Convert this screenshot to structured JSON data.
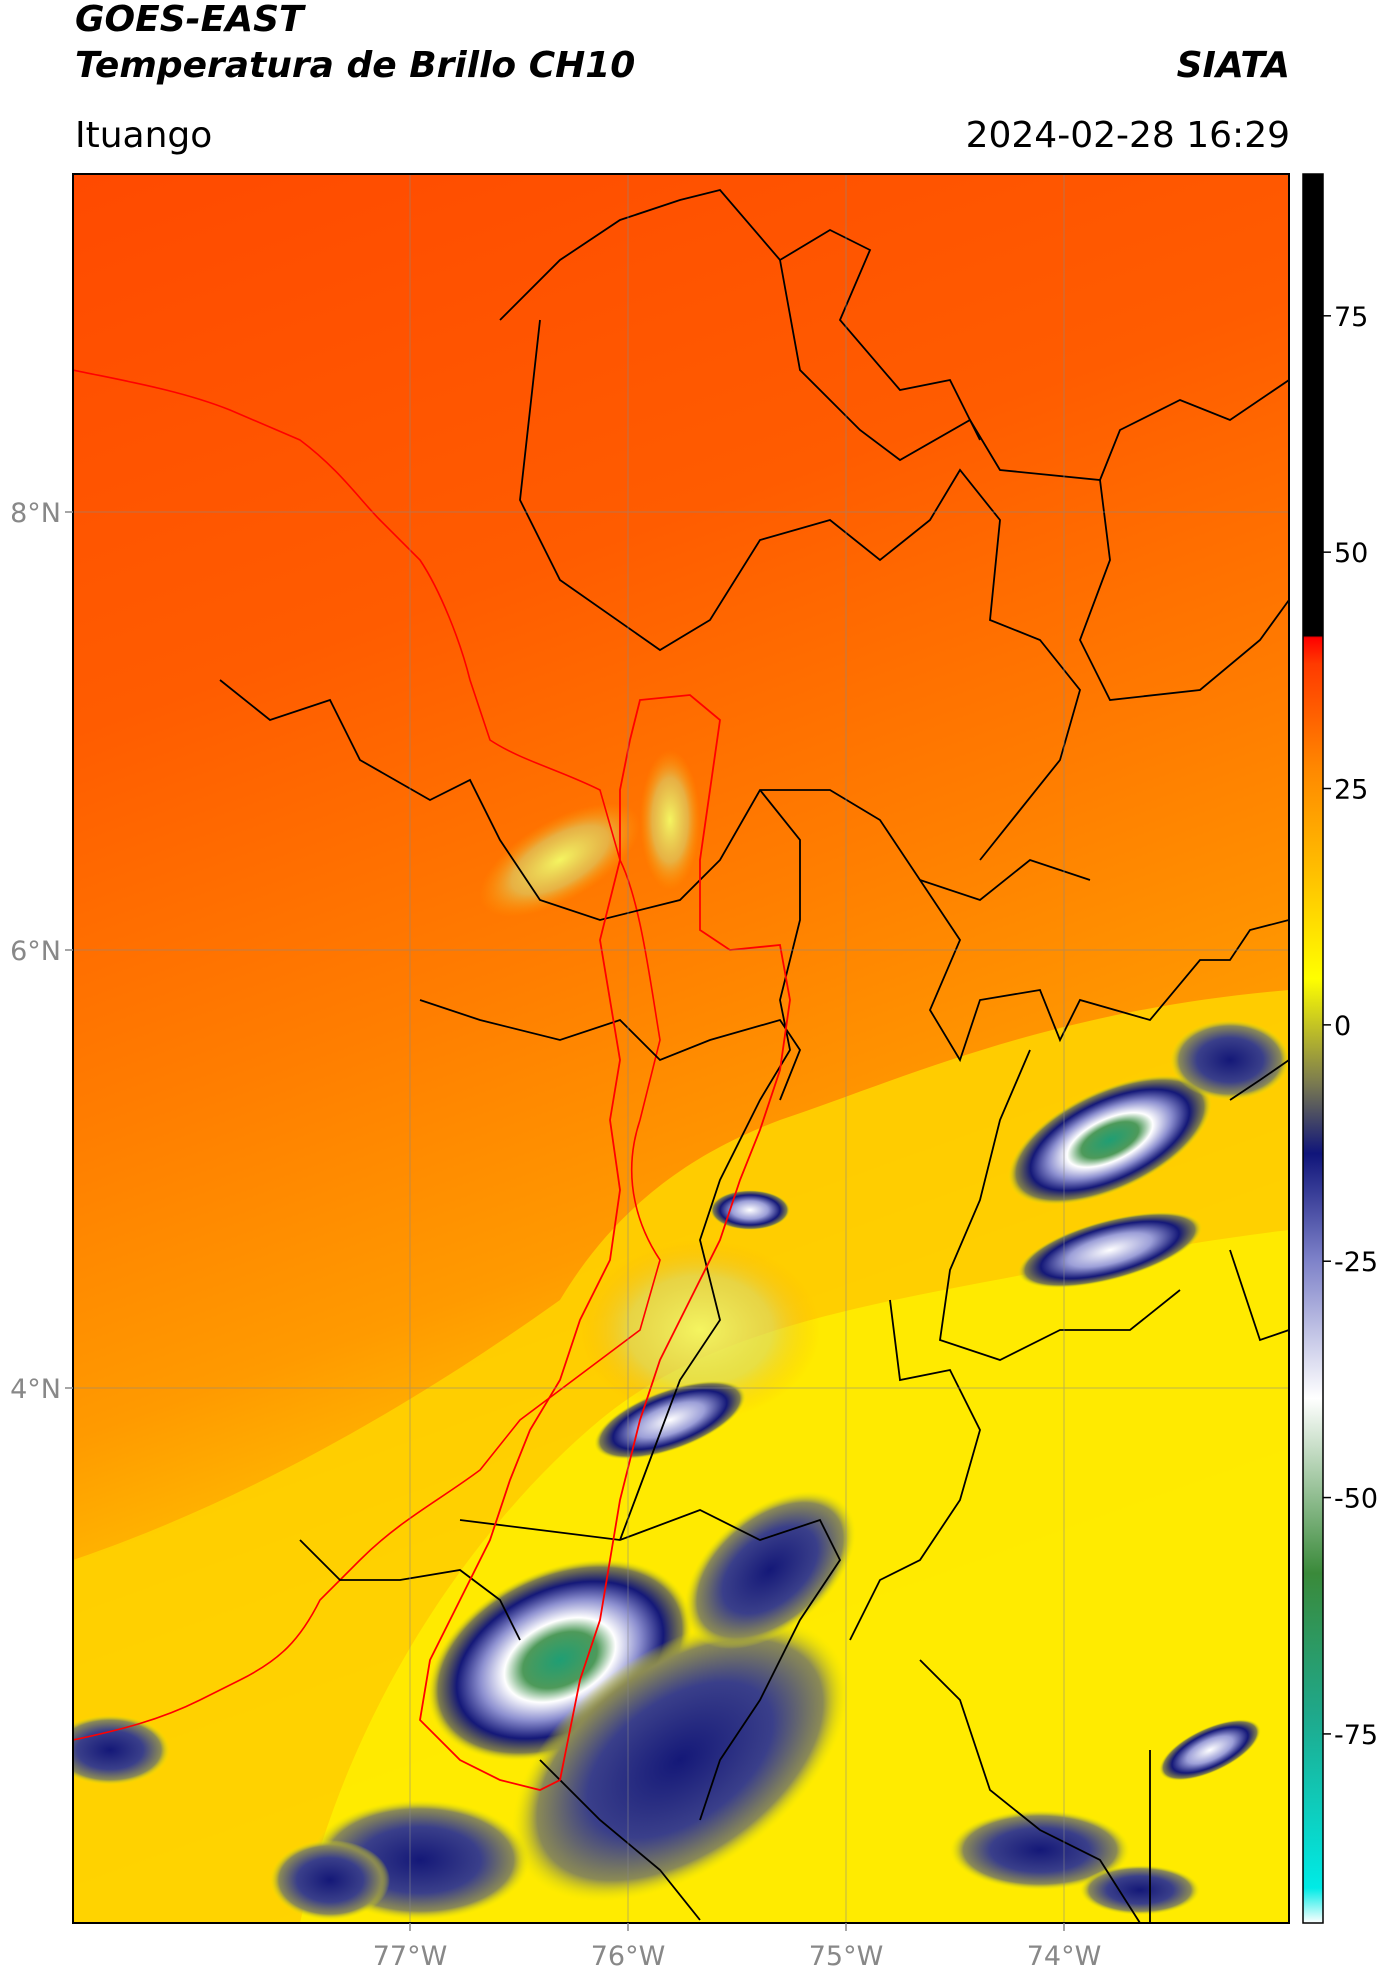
{
  "header": {
    "title_line1": "GOES-EAST",
    "title_line2": "Temperatura de Brillo CH10",
    "organization": "SIATA",
    "region": "Ituango",
    "timestamp": "2024-02-28 16:29"
  },
  "axes": {
    "lat_ticks": [
      "8°N",
      "6°N",
      "4°N"
    ],
    "lon_ticks": [
      "77°W",
      "76°W",
      "75°W",
      "74°W"
    ]
  },
  "colorbar": {
    "ticks": [
      "75",
      "50",
      "25",
      "0",
      "-25",
      "-50",
      "-75"
    ],
    "colors": {
      "black": "#000000",
      "red": "#ff1a00",
      "orange": "#ff8c00",
      "yellow": "#ffff00",
      "olive": "#8c8c40",
      "navy": "#12147a",
      "white": "#ffffff",
      "green": "#2d8a3a",
      "cyan": "#00e5e0"
    }
  },
  "chart_data": {
    "type": "heatmap",
    "title": "Temperatura de Brillo CH10",
    "lat_ticks": [
      8,
      6,
      4
    ],
    "lon_ticks": [
      -77,
      -76,
      -75,
      -74
    ],
    "colorbar_ticks": [
      75,
      50,
      25,
      0,
      -25,
      -50,
      -75
    ],
    "colorbar_range": [
      -95,
      90
    ]
  }
}
